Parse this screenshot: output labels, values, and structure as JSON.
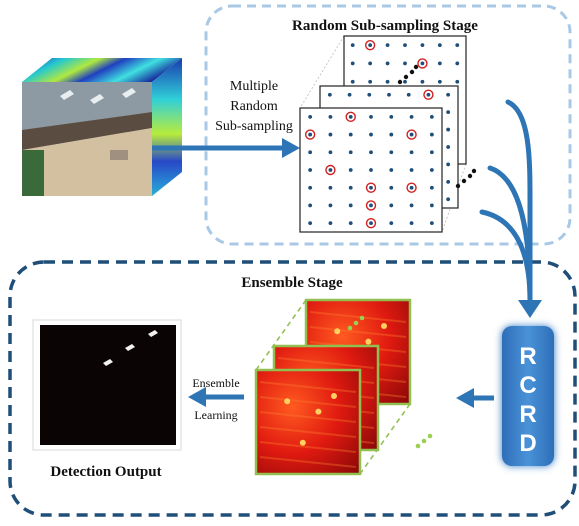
{
  "top_stage": {
    "title": "Random Sub-sampling Stage"
  },
  "bottom_stage": {
    "title": "Ensemble Stage"
  },
  "multiple_label": {
    "lines": [
      "Multiple",
      "Random",
      "Sub-sampling"
    ]
  },
  "rcrd": {
    "letters": [
      "R",
      "C",
      "R",
      "D"
    ]
  },
  "ensemble_label": {
    "lines": [
      "Ensemble",
      "Learning"
    ]
  },
  "detection_output": {
    "label": "Detection Output"
  },
  "colors": {
    "top_border": "#a9c8e6",
    "bottom_border": "#1f4e79",
    "arrow": "#2e75b6",
    "rcrd_fill": "#3c82c8",
    "grid_dot": "#1f4e79",
    "circle": "#d42020",
    "heat_border": "#92c050"
  }
}
